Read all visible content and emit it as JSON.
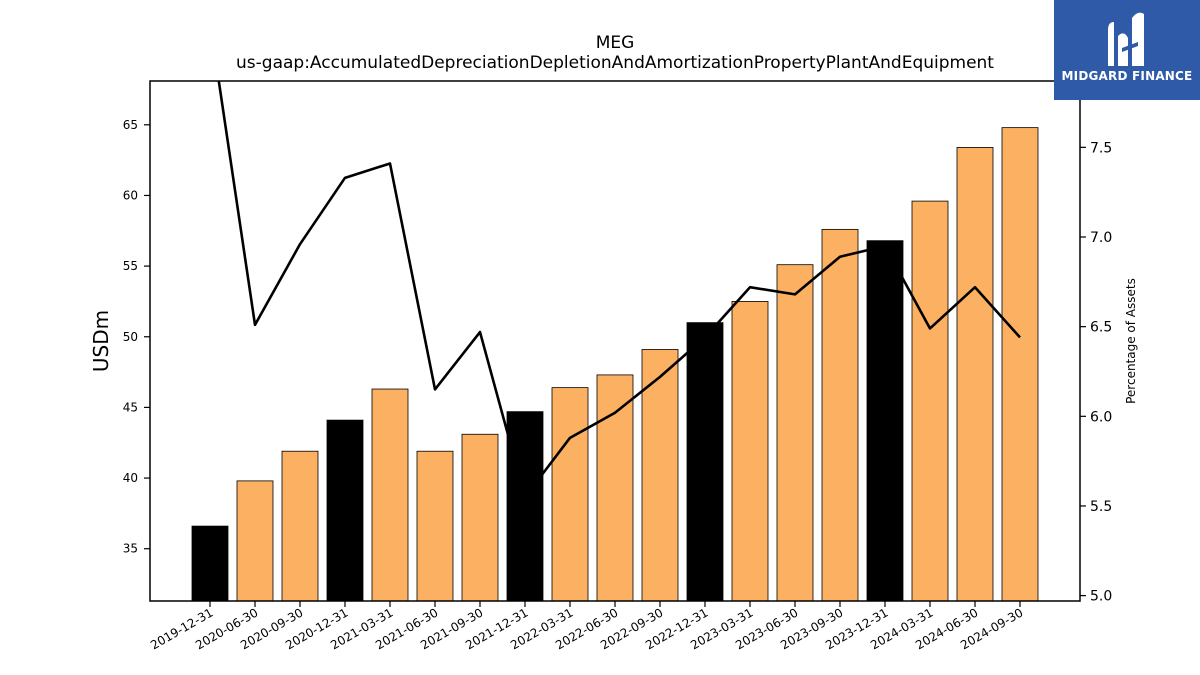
{
  "chart_data": {
    "type": "bar",
    "title": "MEG",
    "subtitle": "us-gaap:AccumulatedDepreciationDepletionAndAmortizationPropertyPlantAndEquipment",
    "ylabel": "USDm",
    "y2label": "Percentage of Assets",
    "ylim": [
      31.3,
      68.1
    ],
    "y2lim": [
      4.97,
      7.87
    ],
    "yticks": [
      35,
      40,
      45,
      50,
      55,
      60,
      65
    ],
    "y2ticks": [
      5.0,
      5.5,
      6.0,
      6.5,
      7.0,
      7.5
    ],
    "y2ticklabels": [
      "5.0",
      "5.5",
      "6.0",
      "6.5",
      "7.0",
      "7.5"
    ],
    "categories": [
      "2019-12-31",
      "2020-06-30",
      "2020-09-30",
      "2020-12-31",
      "2021-03-31",
      "2021-06-30",
      "2021-09-30",
      "2021-12-31",
      "2022-03-31",
      "2022-06-30",
      "2022-09-30",
      "2022-12-31",
      "2023-03-31",
      "2023-06-30",
      "2023-09-30",
      "2023-12-31",
      "2024-03-31",
      "2024-06-30",
      "2024-09-30"
    ],
    "series": [
      {
        "type": "bar",
        "values": [
          36.6,
          39.8,
          41.9,
          44.1,
          46.3,
          41.9,
          43.1,
          44.7,
          46.4,
          47.3,
          49.1,
          51.0,
          52.5,
          55.1,
          57.6,
          56.8,
          59.6,
          63.4,
          64.8
        ],
        "colors": [
          "#000000",
          "#fbb161",
          "#fbb161",
          "#000000",
          "#fbb161",
          "#fbb161",
          "#fbb161",
          "#000000",
          "#fbb161",
          "#fbb161",
          "#fbb161",
          "#000000",
          "#fbb161",
          "#fbb161",
          "#fbb161",
          "#000000",
          "#fbb161",
          "#fbb161",
          "#fbb161"
        ]
      },
      {
        "type": "line",
        "axis": "right",
        "color": "#000000",
        "values": [
          8.2,
          6.51,
          6.96,
          7.33,
          7.41,
          6.15,
          6.47,
          5.55,
          5.88,
          6.02,
          6.22,
          6.44,
          6.72,
          6.68,
          6.89,
          6.95,
          6.49,
          6.72,
          6.44
        ]
      }
    ],
    "grid": false
  },
  "logo": {
    "text": "MIDGARD FINANCE"
  }
}
